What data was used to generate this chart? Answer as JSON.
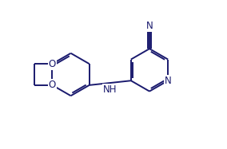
{
  "bg_color": "#ffffff",
  "bond_color": "#1a1a6e",
  "atom_color": "#1a1a6e",
  "line_width": 1.4,
  "font_size": 8.5,
  "fig_width": 2.84,
  "fig_height": 1.87,
  "dpi": 100,
  "xlim": [
    0,
    10
  ],
  "ylim": [
    0,
    6.6
  ]
}
